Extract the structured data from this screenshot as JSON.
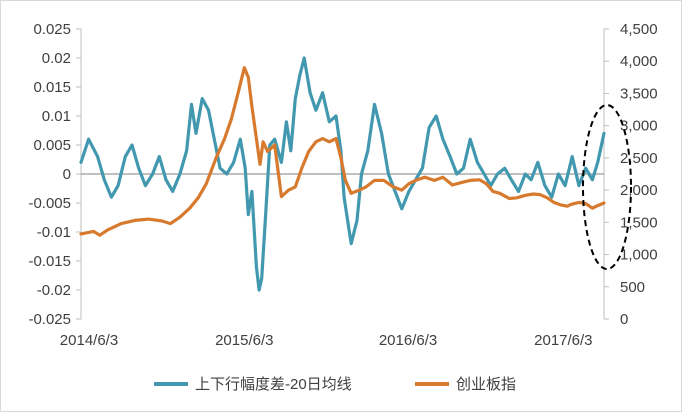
{
  "chart_data": {
    "type": "line",
    "x_ticks": [
      "2014/6/3",
      "2015/6/3",
      "2016/6/3",
      "2017/6/3"
    ],
    "x_range": [
      "2014-06-03",
      "2017-08-15"
    ],
    "y_left": {
      "ylim": [
        -0.025,
        0.025
      ],
      "tick_values": [
        -0.025,
        -0.02,
        -0.015,
        -0.01,
        -0.005,
        0,
        0.005,
        0.01,
        0.015,
        0.02,
        0.025
      ],
      "tick_labels": [
        "-0.025",
        "-0.02",
        "-0.015",
        "-0.01",
        "-0.005",
        "0",
        "0.005",
        "0.01",
        "0.015",
        "0.02",
        "0.025"
      ]
    },
    "y_right": {
      "ylim": [
        0,
        4500
      ],
      "tick_values": [
        0,
        500,
        1000,
        1500,
        2000,
        2500,
        3000,
        3500,
        4000,
        4500
      ],
      "tick_labels": [
        "0",
        "500",
        "1,000",
        "1,500",
        "2,000",
        "2,500",
        "3,000",
        "3,500",
        "4,000",
        "4,500"
      ]
    },
    "grid": false,
    "legend_position": "bottom",
    "series": [
      {
        "name": "上下行幅度差-20日均线",
        "axis": "left",
        "color": "#4198AF",
        "points": [
          [
            "2014-06-03",
            0.002
          ],
          [
            "2014-06-20",
            0.006
          ],
          [
            "2014-07-10",
            0.003
          ],
          [
            "2014-07-25",
            -0.001
          ],
          [
            "2014-08-10",
            -0.004
          ],
          [
            "2014-08-25",
            -0.002
          ],
          [
            "2014-09-10",
            0.003
          ],
          [
            "2014-09-25",
            0.005
          ],
          [
            "2014-10-10",
            0.001
          ],
          [
            "2014-10-25",
            -0.002
          ],
          [
            "2014-11-10",
            0.0
          ],
          [
            "2014-11-25",
            0.003
          ],
          [
            "2014-12-10",
            -0.001
          ],
          [
            "2014-12-25",
            -0.003
          ],
          [
            "2015-01-10",
            0.0
          ],
          [
            "2015-01-25",
            0.004
          ],
          [
            "2015-02-05",
            0.012
          ],
          [
            "2015-02-15",
            0.007
          ],
          [
            "2015-03-01",
            0.013
          ],
          [
            "2015-03-15",
            0.011
          ],
          [
            "2015-03-28",
            0.006
          ],
          [
            "2015-04-10",
            0.001
          ],
          [
            "2015-04-25",
            0.0
          ],
          [
            "2015-05-10",
            0.002
          ],
          [
            "2015-05-25",
            0.006
          ],
          [
            "2015-06-05",
            0.001
          ],
          [
            "2015-06-12",
            -0.007
          ],
          [
            "2015-06-20",
            -0.003
          ],
          [
            "2015-06-30",
            -0.016
          ],
          [
            "2015-07-06",
            -0.02
          ],
          [
            "2015-07-12",
            -0.018
          ],
          [
            "2015-07-20",
            -0.008
          ],
          [
            "2015-07-30",
            0.005
          ],
          [
            "2015-08-10",
            0.006
          ],
          [
            "2015-08-25",
            0.002
          ],
          [
            "2015-09-05",
            0.009
          ],
          [
            "2015-09-15",
            0.004
          ],
          [
            "2015-09-25",
            0.013
          ],
          [
            "2015-10-05",
            0.017
          ],
          [
            "2015-10-15",
            0.02
          ],
          [
            "2015-10-28",
            0.014
          ],
          [
            "2015-11-10",
            0.011
          ],
          [
            "2015-11-25",
            0.014
          ],
          [
            "2015-12-10",
            0.009
          ],
          [
            "2015-12-25",
            0.01
          ],
          [
            "2016-01-05",
            0.004
          ],
          [
            "2016-01-12",
            -0.004
          ],
          [
            "2016-01-20",
            -0.008
          ],
          [
            "2016-01-28",
            -0.012
          ],
          [
            "2016-02-10",
            -0.008
          ],
          [
            "2016-02-20",
            0.0
          ],
          [
            "2016-03-05",
            0.004
          ],
          [
            "2016-03-20",
            0.012
          ],
          [
            "2016-04-05",
            0.007
          ],
          [
            "2016-04-20",
            0.0
          ],
          [
            "2016-05-05",
            -0.003
          ],
          [
            "2016-05-20",
            -0.006
          ],
          [
            "2016-06-05",
            -0.003
          ],
          [
            "2016-06-20",
            -0.001
          ],
          [
            "2016-07-05",
            0.001
          ],
          [
            "2016-07-20",
            0.008
          ],
          [
            "2016-08-05",
            0.01
          ],
          [
            "2016-08-20",
            0.006
          ],
          [
            "2016-09-05",
            0.003
          ],
          [
            "2016-09-20",
            0.0
          ],
          [
            "2016-10-05",
            0.001
          ],
          [
            "2016-10-20",
            0.006
          ],
          [
            "2016-11-05",
            0.002
          ],
          [
            "2016-11-20",
            0.0
          ],
          [
            "2016-12-05",
            -0.002
          ],
          [
            "2016-12-20",
            0.0
          ],
          [
            "2017-01-05",
            0.001
          ],
          [
            "2017-01-20",
            -0.001
          ],
          [
            "2017-02-05",
            -0.003
          ],
          [
            "2017-02-20",
            0.0
          ],
          [
            "2017-03-05",
            -0.001
          ],
          [
            "2017-03-20",
            0.002
          ],
          [
            "2017-04-05",
            -0.002
          ],
          [
            "2017-04-20",
            -0.004
          ],
          [
            "2017-05-05",
            0.0
          ],
          [
            "2017-05-20",
            -0.002
          ],
          [
            "2017-06-05",
            0.003
          ],
          [
            "2017-06-20",
            -0.002
          ],
          [
            "2017-07-05",
            0.001
          ],
          [
            "2017-07-20",
            -0.001
          ],
          [
            "2017-08-01",
            0.002
          ],
          [
            "2017-08-15",
            0.007
          ]
        ]
      },
      {
        "name": "创业板指",
        "axis": "right",
        "color": "#D77A2E",
        "points": [
          [
            "2014-06-03",
            1320
          ],
          [
            "2014-07-01",
            1360
          ],
          [
            "2014-07-15",
            1300
          ],
          [
            "2014-08-01",
            1380
          ],
          [
            "2014-09-01",
            1480
          ],
          [
            "2014-10-01",
            1530
          ],
          [
            "2014-11-01",
            1550
          ],
          [
            "2014-12-01",
            1520
          ],
          [
            "2014-12-20",
            1480
          ],
          [
            "2015-01-10",
            1580
          ],
          [
            "2015-02-01",
            1720
          ],
          [
            "2015-02-20",
            1880
          ],
          [
            "2015-03-10",
            2100
          ],
          [
            "2015-04-01",
            2500
          ],
          [
            "2015-04-20",
            2800
          ],
          [
            "2015-05-05",
            3100
          ],
          [
            "2015-05-20",
            3500
          ],
          [
            "2015-06-03",
            3900
          ],
          [
            "2015-06-12",
            3750
          ],
          [
            "2015-06-20",
            3300
          ],
          [
            "2015-06-30",
            2800
          ],
          [
            "2015-07-08",
            2400
          ],
          [
            "2015-07-15",
            2750
          ],
          [
            "2015-07-25",
            2600
          ],
          [
            "2015-08-10",
            2700
          ],
          [
            "2015-08-25",
            1900
          ],
          [
            "2015-09-10",
            2000
          ],
          [
            "2015-09-25",
            2050
          ],
          [
            "2015-10-10",
            2350
          ],
          [
            "2015-10-25",
            2600
          ],
          [
            "2015-11-10",
            2750
          ],
          [
            "2015-11-25",
            2800
          ],
          [
            "2015-12-10",
            2750
          ],
          [
            "2015-12-25",
            2800
          ],
          [
            "2016-01-05",
            2500
          ],
          [
            "2016-01-15",
            2150
          ],
          [
            "2016-01-28",
            1950
          ],
          [
            "2016-02-15",
            2000
          ],
          [
            "2016-03-01",
            2050
          ],
          [
            "2016-03-20",
            2150
          ],
          [
            "2016-04-10",
            2150
          ],
          [
            "2016-05-01",
            2050
          ],
          [
            "2016-05-20",
            2000
          ],
          [
            "2016-06-05",
            2100
          ],
          [
            "2016-06-20",
            2150
          ],
          [
            "2016-07-10",
            2200
          ],
          [
            "2016-08-01",
            2150
          ],
          [
            "2016-08-20",
            2200
          ],
          [
            "2016-09-10",
            2080
          ],
          [
            "2016-10-01",
            2120
          ],
          [
            "2016-10-20",
            2150
          ],
          [
            "2016-11-10",
            2160
          ],
          [
            "2016-11-25",
            2100
          ],
          [
            "2016-12-10",
            1980
          ],
          [
            "2016-12-25",
            1950
          ],
          [
            "2017-01-15",
            1870
          ],
          [
            "2017-02-01",
            1880
          ],
          [
            "2017-02-20",
            1920
          ],
          [
            "2017-03-10",
            1940
          ],
          [
            "2017-03-25",
            1930
          ],
          [
            "2017-04-10",
            1880
          ],
          [
            "2017-04-25",
            1810
          ],
          [
            "2017-05-10",
            1770
          ],
          [
            "2017-05-25",
            1750
          ],
          [
            "2017-06-03",
            1780
          ],
          [
            "2017-06-20",
            1810
          ],
          [
            "2017-07-05",
            1790
          ],
          [
            "2017-07-20",
            1720
          ],
          [
            "2017-08-01",
            1760
          ],
          [
            "2017-08-15",
            1800
          ]
        ]
      }
    ],
    "annotation": "dashed ellipse highlighting the most recent period"
  }
}
